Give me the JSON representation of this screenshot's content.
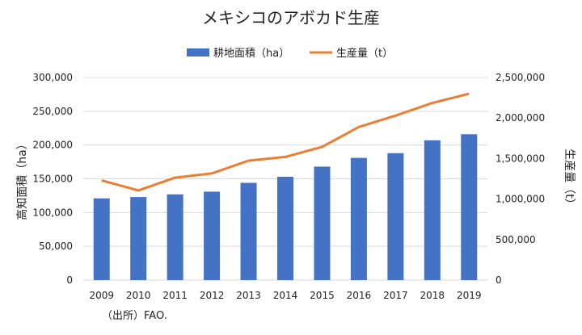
{
  "chart_data": {
    "type": "bar",
    "title": "メキシコのアボカド生産",
    "categories": [
      "2009",
      "2010",
      "2011",
      "2012",
      "2013",
      "2014",
      "2015",
      "2016",
      "2017",
      "2018",
      "2019"
    ],
    "series": [
      {
        "name": "耕地面積（ha）",
        "type": "bar",
        "axis": "left",
        "color": "#4472c4",
        "values": [
          121000,
          123000,
          127000,
          131000,
          144000,
          153000,
          168000,
          181000,
          188000,
          207000,
          216000
        ]
      },
      {
        "name": "生産量（t）",
        "type": "line",
        "axis": "right",
        "color": "#ed7d31",
        "values": [
          1230000,
          1107000,
          1264000,
          1317000,
          1474000,
          1520000,
          1644000,
          1889000,
          2030000,
          2185000,
          2300000
        ]
      }
    ],
    "ylabel_left": "高知面積（ha）",
    "ylabel_right": "生産量（t）",
    "ylim_left": [
      0,
      300000
    ],
    "ylim_right": [
      0,
      2500000
    ],
    "yticks_left": [
      "0",
      "50,000",
      "100,000",
      "150,000",
      "200,000",
      "250,000",
      "300,000"
    ],
    "yticks_right": [
      "0",
      "500,000",
      "1,000,000",
      "1,500,000",
      "2,000,000",
      "2,500,000"
    ],
    "grid": true,
    "legend": "top-center"
  },
  "source": "（出所）FAO."
}
